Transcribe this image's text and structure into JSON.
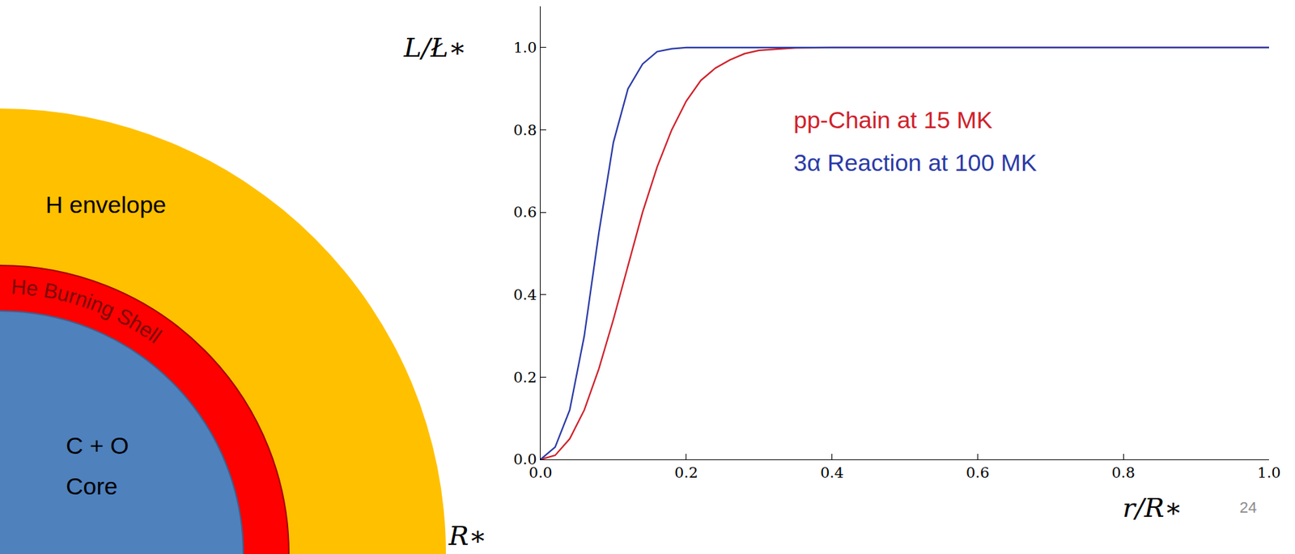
{
  "chart_data": {
    "type": "line",
    "xlabel": "r/R∗",
    "ylabel": "L/Ł∗",
    "x": [
      0,
      0.02,
      0.04,
      0.06,
      0.08,
      0.1,
      0.12,
      0.14,
      0.16,
      0.18,
      0.2,
      0.22,
      0.24,
      0.26,
      0.28,
      0.3,
      0.35,
      0.4,
      0.6,
      0.8,
      1.0
    ],
    "series": [
      {
        "name": "pp-Chain at 15 MK",
        "color": "#d0202a",
        "values": [
          0,
          0.01,
          0.05,
          0.12,
          0.22,
          0.34,
          0.47,
          0.6,
          0.71,
          0.8,
          0.87,
          0.92,
          0.95,
          0.97,
          0.985,
          0.993,
          0.999,
          1,
          1,
          1,
          1
        ]
      },
      {
        "name": "3α Reaction at 100 MK",
        "color": "#2a3aa8",
        "values": [
          0,
          0.03,
          0.12,
          0.3,
          0.55,
          0.77,
          0.9,
          0.96,
          0.99,
          0.997,
          1,
          1,
          1,
          1,
          1,
          1,
          1,
          1,
          1,
          1,
          1
        ]
      }
    ],
    "xlim": [
      0,
      1
    ],
    "ylim": [
      0,
      1.1
    ],
    "xticks": [
      {
        "value": 0,
        "label": "0.0"
      },
      0.2,
      0.4,
      0.6,
      0.8,
      {
        "value": 1,
        "label": "1.0"
      }
    ],
    "yticks": [
      {
        "value": 0,
        "label": "0.0"
      },
      0.2,
      0.4,
      0.6,
      0.8,
      {
        "value": 1,
        "label": "1.0"
      }
    ],
    "grid": false
  },
  "diagram": {
    "layers": [
      {
        "label": "H envelope",
        "color": "#ffc000"
      },
      {
        "label": "He Burning Shell",
        "color": "#ff0000"
      },
      {
        "label": "C + O\nCore",
        "color": "#4f81bd"
      }
    ],
    "radius_label": "R∗"
  },
  "page_number": "24"
}
